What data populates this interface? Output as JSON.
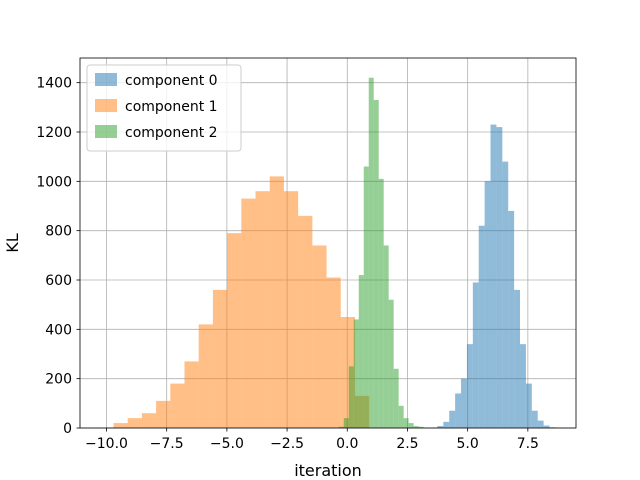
{
  "chart_data": {
    "type": "bar",
    "xlabel": "iteration",
    "ylabel": "KL",
    "xlim": [
      -11.1,
      9.5
    ],
    "ylim": [
      0,
      1500
    ],
    "grid": true,
    "legend_position": "top-left",
    "bar_opacity": 0.5,
    "x_ticks": [
      -10.0,
      -7.5,
      -5.0,
      -2.5,
      0.0,
      2.5,
      5.0,
      7.5
    ],
    "x_tick_labels": [
      "−10.0",
      "−7.5",
      "−5.0",
      "−2.5",
      "0.0",
      "2.5",
      "5.0",
      "7.5"
    ],
    "y_ticks": [
      0,
      200,
      400,
      600,
      800,
      1000,
      1200,
      1400
    ],
    "y_tick_labels": [
      "0",
      "200",
      "400",
      "600",
      "800",
      "1000",
      "1200",
      "1400"
    ],
    "series": [
      {
        "name": "component 0",
        "color": "#1f77b4",
        "bin_width": 0.245,
        "bin_starts": [
          3.5,
          3.745,
          3.99,
          4.235,
          4.48,
          4.725,
          4.97,
          5.215,
          5.46,
          5.705,
          5.95,
          6.195,
          6.44,
          6.685,
          6.93,
          7.175,
          7.42,
          7.665,
          7.91,
          8.155,
          8.4
        ],
        "counts": [
          2,
          8,
          25,
          70,
          140,
          200,
          340,
          590,
          820,
          1000,
          1230,
          1220,
          1080,
          880,
          560,
          340,
          180,
          70,
          30,
          10,
          3
        ]
      },
      {
        "name": "component 1",
        "color": "#ff7f0e",
        "bin_width": 0.59,
        "bin_starts": [
          -10.3,
          -9.71,
          -9.12,
          -8.53,
          -7.94,
          -7.35,
          -6.76,
          -6.17,
          -5.58,
          -4.99,
          -4.4,
          -3.81,
          -3.22,
          -2.63,
          -2.04,
          -1.45,
          -0.86,
          -0.27,
          0.32
        ],
        "counts": [
          2,
          20,
          40,
          60,
          110,
          180,
          270,
          420,
          560,
          790,
          930,
          960,
          1020,
          960,
          860,
          740,
          610,
          450,
          130
        ]
      },
      {
        "name": "component 2",
        "color": "#2ca02c",
        "bin_width": 0.207,
        "bin_starts": [
          -0.35,
          -0.143,
          0.064,
          0.271,
          0.478,
          0.685,
          0.892,
          1.099,
          1.306,
          1.513,
          1.72,
          1.927,
          2.134,
          2.341,
          2.548,
          2.755,
          2.962,
          3.169,
          3.376,
          3.583
        ],
        "counts": [
          5,
          40,
          250,
          440,
          620,
          1060,
          1420,
          1330,
          1010,
          740,
          520,
          240,
          90,
          40,
          20,
          8,
          5,
          2,
          1,
          1
        ]
      }
    ]
  }
}
